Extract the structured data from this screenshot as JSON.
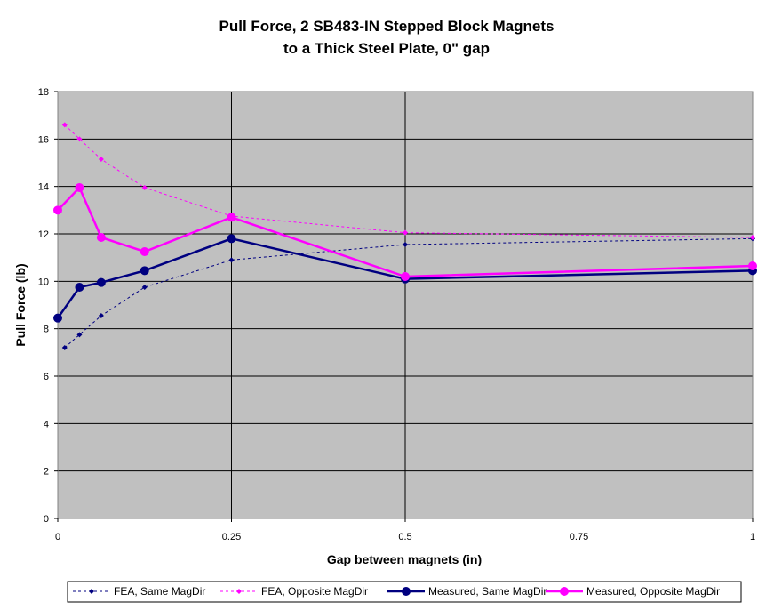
{
  "chart_data": {
    "type": "line",
    "title": [
      "Pull Force, 2 SB483-IN Stepped Block Magnets",
      "to a Thick Steel Plate, 0\" gap"
    ],
    "xlabel": "Gap between magnets (in)",
    "ylabel": "Pull Force (lb)",
    "xlim": [
      0,
      1
    ],
    "ylim": [
      0,
      18
    ],
    "xticks": [
      0,
      0.25,
      0.5,
      0.75,
      1
    ],
    "xtick_labels": [
      "0",
      "0.25",
      "0.5",
      "0.75",
      "1"
    ],
    "yticks": [
      0,
      2,
      4,
      6,
      8,
      10,
      12,
      14,
      16,
      18
    ],
    "ytick_labels": [
      "0",
      "2",
      "4",
      "6",
      "8",
      "10",
      "12",
      "14",
      "16",
      "18"
    ],
    "grid": true,
    "plot_background": "#c0c0c0",
    "legend_position": "bottom",
    "series": [
      {
        "name": "FEA, Same MagDir",
        "color": "#000080",
        "style": "dashed",
        "marker": "diamond-small",
        "x": [
          0.01,
          0.03125,
          0.0625,
          0.125,
          0.25,
          0.5,
          1
        ],
        "y": [
          7.2,
          7.75,
          8.55,
          9.75,
          10.9,
          11.55,
          11.8
        ]
      },
      {
        "name": "FEA, Opposite MagDir",
        "color": "#ff00ff",
        "style": "dashed",
        "marker": "diamond-small",
        "x": [
          0.01,
          0.03125,
          0.0625,
          0.125,
          0.25,
          0.5,
          1
        ],
        "y": [
          16.6,
          16.0,
          15.15,
          13.95,
          12.75,
          12.05,
          11.85
        ]
      },
      {
        "name": "Measured, Same MagDir",
        "color": "#000080",
        "style": "solid",
        "marker": "circle",
        "x": [
          0,
          0.03125,
          0.0625,
          0.125,
          0.25,
          0.5,
          1
        ],
        "y": [
          8.45,
          9.75,
          9.95,
          10.45,
          11.8,
          10.1,
          10.45
        ]
      },
      {
        "name": "Measured, Opposite MagDir",
        "color": "#ff00ff",
        "style": "solid",
        "marker": "circle",
        "x": [
          0,
          0.03125,
          0.0625,
          0.125,
          0.25,
          0.5,
          1
        ],
        "y": [
          13.0,
          13.95,
          11.85,
          11.25,
          12.7,
          10.2,
          10.65
        ]
      }
    ]
  }
}
